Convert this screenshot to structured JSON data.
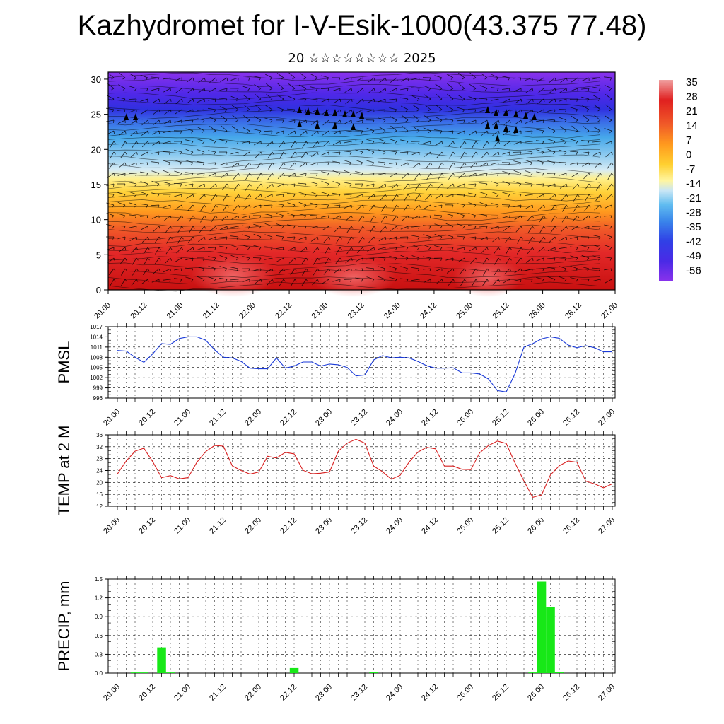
{
  "header": {
    "title": "Kazhydromet for I-V-Esik-1000(43.375 77.48)",
    "subtitle": "20 ☆☆☆☆☆☆☆☆ 2025"
  },
  "chart_data": [
    {
      "type": "heatmap",
      "x_ticks": [
        "20.00",
        "20.12",
        "21.00",
        "21.12",
        "22.00",
        "22.12",
        "23.00",
        "23.12",
        "24.00",
        "24.12",
        "25.00",
        "25.12",
        "26.00",
        "26.12",
        "27.00"
      ],
      "y_ticks": [
        0,
        5,
        10,
        15,
        20,
        25,
        30
      ],
      "ylim": [
        0,
        31
      ],
      "colorbar_labels": [
        "35",
        "28",
        "21",
        "14",
        "7",
        "0",
        "-7",
        "-14",
        "-21",
        "-28",
        "-35",
        "-42",
        "-49",
        "-56"
      ],
      "colors": {
        "hot": "#d82020",
        "warm": "#ff8c1a",
        "mild": "#ffe65a",
        "cool": "#5ab4ee",
        "cold": "#3a3aee",
        "coldest": "#7a2be8"
      }
    },
    {
      "type": "line",
      "ylabel": "PMSL",
      "x_ticks": [
        "20.00",
        "20.12",
        "21.00",
        "21.12",
        "22.00",
        "22.12",
        "23.00",
        "23.12",
        "24.00",
        "24.12",
        "25.00",
        "25.12",
        "26.00",
        "26.12",
        "27.00"
      ],
      "y_ticks": [
        996,
        999,
        1002,
        1005,
        1008,
        1011,
        1014,
        1017
      ],
      "ylim": [
        996,
        1017
      ],
      "x": [
        0,
        3,
        6,
        9,
        12,
        15,
        18,
        21,
        24,
        27,
        30,
        33,
        36,
        39,
        42,
        45,
        48,
        51,
        54,
        57,
        60,
        63,
        66,
        69,
        72,
        75,
        78,
        81,
        84,
        87,
        90,
        93,
        96,
        99,
        102,
        105,
        108,
        111,
        114,
        117,
        120,
        123,
        126,
        129,
        132,
        135,
        138,
        141,
        144,
        147,
        150,
        153,
        156,
        159,
        162,
        165,
        168
      ],
      "values": [
        1010,
        1009.8,
        1008,
        1006.5,
        1009,
        1012,
        1011.8,
        1013.5,
        1014,
        1014,
        1013,
        1010.2,
        1008,
        1007.8,
        1006.8,
        1004.8,
        1004.6,
        1004.6,
        1007.8,
        1004.8,
        1005.4,
        1006.6,
        1006.6,
        1005.4,
        1006,
        1005.8,
        1005,
        1002.5,
        1002.8,
        1007.2,
        1008.5,
        1007.8,
        1008,
        1007.8,
        1006.8,
        1005.5,
        1004.8,
        1004.8,
        1004.9,
        1003.4,
        1003.4,
        1003.1,
        1001.6,
        998.2,
        997.8,
        1003.2,
        1011,
        1012,
        1013.4,
        1014,
        1013.6,
        1011.6,
        1010.8,
        1011.4,
        1010.8,
        1009.6,
        1009.6
      ],
      "color": "#1a3ad8"
    },
    {
      "type": "line",
      "ylabel": "TEMP at 2 M",
      "x_ticks": [
        "20.00",
        "20.12",
        "21.00",
        "21.12",
        "22.00",
        "22.12",
        "23.00",
        "23.12",
        "24.00",
        "24.12",
        "25.00",
        "25.12",
        "26.00",
        "26.12",
        "27.00"
      ],
      "y_ticks": [
        12,
        16,
        20,
        24,
        28,
        32,
        36
      ],
      "ylim": [
        12,
        36
      ],
      "x": [
        0,
        3,
        6,
        9,
        12,
        15,
        18,
        21,
        24,
        27,
        30,
        33,
        36,
        39,
        42,
        45,
        48,
        51,
        54,
        57,
        60,
        63,
        66,
        69,
        72,
        75,
        78,
        81,
        84,
        87,
        90,
        93,
        96,
        99,
        102,
        105,
        108,
        111,
        114,
        117,
        120,
        123,
        126,
        129,
        132,
        135,
        138,
        141,
        144,
        147,
        150,
        153,
        156,
        159,
        162,
        165,
        168
      ],
      "values": [
        22.8,
        27.2,
        30.5,
        31.5,
        27,
        21.6,
        22.3,
        21.2,
        21.6,
        26.8,
        30.4,
        32.4,
        32.2,
        25.6,
        24,
        22.8,
        23.5,
        28.8,
        28.2,
        30.1,
        29.6,
        24.1,
        22.9,
        23.1,
        23.5,
        30.5,
        33.2,
        34.5,
        33.2,
        25.5,
        23.6,
        21.1,
        22.4,
        26.8,
        30.2,
        31.8,
        31.3,
        25.5,
        25.5,
        24.4,
        24.3,
        30,
        32.4,
        33.9,
        33.1,
        26.5,
        20.5,
        15,
        15.8,
        22.5,
        25.6,
        27.2,
        26.8,
        20.4,
        19.5,
        18.2,
        19.5
      ],
      "color": "#d82020"
    },
    {
      "type": "bar",
      "ylabel": "PRECIP, mm",
      "x_ticks": [
        "20.00",
        "20.12",
        "21.00",
        "21.12",
        "22.00",
        "22.12",
        "23.00",
        "23.12",
        "24.00",
        "24.12",
        "25.00",
        "25.12",
        "26.00",
        "26.12",
        "27.00"
      ],
      "y_ticks": [
        "0.0",
        "0.3",
        "0.6",
        "0.9",
        "1.2",
        "1.5"
      ],
      "ylim": [
        0,
        1.5
      ],
      "x": [
        6,
        9,
        15,
        18,
        60,
        87,
        141,
        144,
        147,
        150
      ],
      "values": [
        0.01,
        0.01,
        0.41,
        0.01,
        0.08,
        0.02,
        0.01,
        1.46,
        1.05,
        0.02
      ],
      "color": "#17e817"
    }
  ]
}
